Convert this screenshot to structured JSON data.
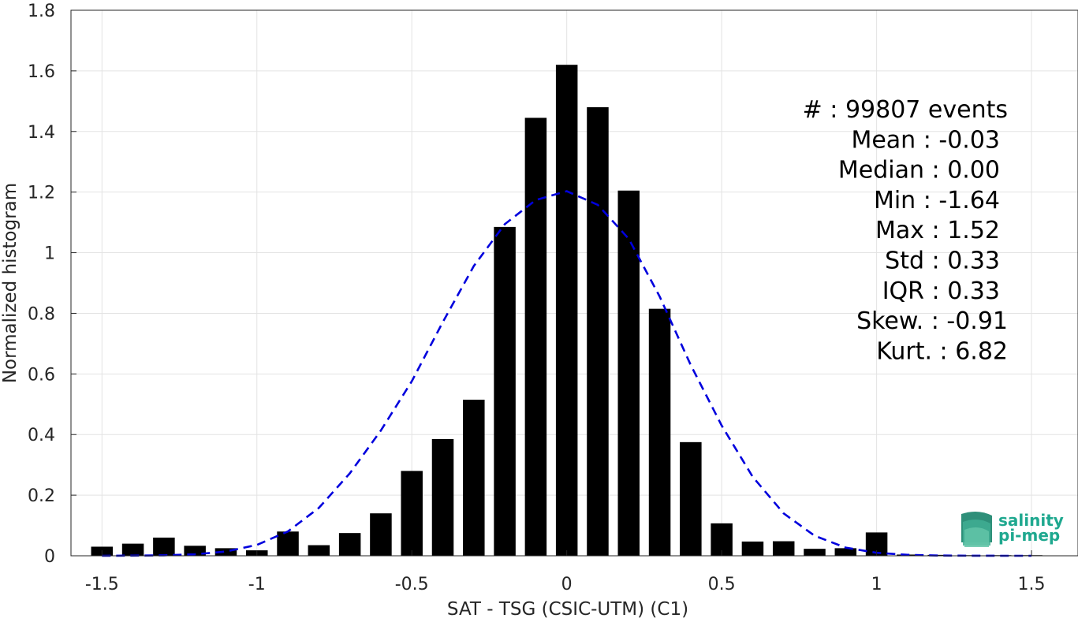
{
  "chart_data": {
    "type": "bar",
    "title": "",
    "xlabel": "SAT - TSG (CSIC-UTM) (C1)",
    "ylabel": "Normalized histogram",
    "xlim": [
      -1.6,
      1.65
    ],
    "ylim": [
      0,
      1.8
    ],
    "grid": true,
    "x_ticks": [
      -1.5,
      -1,
      -0.5,
      0,
      0.5,
      1,
      1.5
    ],
    "x_tick_labels": [
      "-1.5",
      "-1",
      "-0.5",
      "0",
      "0.5",
      "1",
      "1.5"
    ],
    "y_ticks": [
      0,
      0.2,
      0.4,
      0.6,
      0.8,
      1,
      1.2,
      1.4,
      1.6,
      1.8
    ],
    "y_tick_labels": [
      "0",
      "0.2",
      "0.4",
      "0.6",
      "0.8",
      "1",
      "1.2",
      "1.4",
      "1.6",
      "1.8"
    ],
    "bar_width": 0.07,
    "bar_color": "#000000",
    "series": [
      {
        "type": "bar",
        "x": [
          -1.5,
          -1.4,
          -1.3,
          -1.2,
          -1.1,
          -1.0,
          -0.9,
          -0.8,
          -0.7,
          -0.6,
          -0.5,
          -0.4,
          -0.3,
          -0.2,
          -0.1,
          0.0,
          0.1,
          0.2,
          0.3,
          0.4,
          0.5,
          0.6,
          0.7,
          0.8,
          0.9,
          1.0,
          1.1,
          1.2,
          1.3,
          1.4,
          1.5
        ],
        "values": [
          0.03,
          0.04,
          0.06,
          0.033,
          0.025,
          0.018,
          0.08,
          0.035,
          0.075,
          0.14,
          0.28,
          0.385,
          0.515,
          1.085,
          1.445,
          1.62,
          1.48,
          1.205,
          0.815,
          0.375,
          0.107,
          0.047,
          0.048,
          0.023,
          0.025,
          0.077,
          0.004,
          0.003,
          0.002,
          0.002,
          0.002
        ]
      },
      {
        "type": "line",
        "style": "dashed",
        "color": "#0000dd",
        "x": [
          -1.5,
          -1.4,
          -1.3,
          -1.2,
          -1.1,
          -1.0,
          -0.9,
          -0.8,
          -0.7,
          -0.6,
          -0.5,
          -0.4,
          -0.3,
          -0.2,
          -0.1,
          0.0,
          0.1,
          0.2,
          0.3,
          0.4,
          0.5,
          0.6,
          0.7,
          0.8,
          0.9,
          1.0,
          1.1,
          1.2,
          1.3,
          1.4,
          1.5
        ],
        "values": [
          0.0001,
          0.0004,
          0.0015,
          0.005,
          0.014,
          0.036,
          0.08,
          0.158,
          0.272,
          0.413,
          0.576,
          0.771,
          0.956,
          1.094,
          1.174,
          1.203,
          1.158,
          1.046,
          0.855,
          0.63,
          0.43,
          0.261,
          0.14,
          0.066,
          0.027,
          0.01,
          0.003,
          0.0008,
          0.0002,
          0.0001,
          0.0001
        ]
      }
    ],
    "annotations": [
      "#  : 99807 events",
      "Mean : -0.03",
      "Median : 0.00",
      "Min : -1.64",
      "Max : 1.52",
      "Std : 0.33",
      "IQR : 0.33",
      "Skew. : -0.91",
      "Kurt. : 6.82"
    ]
  },
  "logo": {
    "line1": "salinity",
    "line2": "pi-mep"
  }
}
